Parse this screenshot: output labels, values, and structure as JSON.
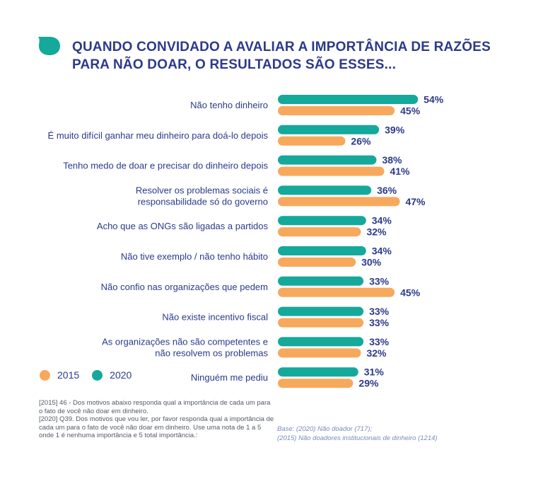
{
  "title": {
    "line1": "QUANDO CONVIDADO A AVALIAR A IMPORTÂNCIA DE RAZÕES",
    "line2": "PARA NÃO DOAR, O RESULTADOS SÃO ESSES..."
  },
  "colors": {
    "teal": "#14a99a",
    "orange": "#f6a95d",
    "navy": "#2b3a8a"
  },
  "legend": {
    "items": [
      {
        "label": "2015",
        "color": "#f6a95d"
      },
      {
        "label": "2020",
        "color": "#14a99a"
      }
    ]
  },
  "notes": {
    "left": [
      "[2015] 46 - Dos motivos abaixo responda qual a importância de cada um para o fato de você não doar em dinheiro.",
      "[2020] Q39. Dos motivos  que vou ler, por favor responda qual a importância de cada um para o fato de você não doar em dinheiro. Use uma nota de 1 a 5 onde 1 é nenhuma importância e 5 total importância.:"
    ],
    "right": [
      "Base: (2020) Não  doador (717);",
      "(2015) Não doadores institucionais de dinheiro (1214)"
    ]
  },
  "chart_data": {
    "type": "bar",
    "orientation": "horizontal",
    "categories": [
      [
        "Não tenho dinheiro"
      ],
      [
        "É muito difícil ganhar meu dinheiro para doá-lo depois"
      ],
      [
        "Tenho medo de doar e precisar do dinheiro depois"
      ],
      [
        "Resolver os problemas sociais é",
        "responsabilidade só do governo"
      ],
      [
        "Acho que as ONGs são ligadas a partidos"
      ],
      [
        "Não tive exemplo / não tenho hábito"
      ],
      [
        "Não confio nas organizações que pedem"
      ],
      [
        "Não existe incentivo fiscal"
      ],
      [
        "As organizações não são competentes e",
        "não resolvem os problemas"
      ],
      [
        "Ninguém me pediu"
      ]
    ],
    "series": [
      {
        "name": "2020",
        "color": "#14a99a",
        "values": [
          54,
          39,
          38,
          36,
          34,
          34,
          33,
          33,
          33,
          31
        ]
      },
      {
        "name": "2015",
        "color": "#f6a95d",
        "values": [
          45,
          26,
          41,
          47,
          32,
          30,
          45,
          33,
          32,
          29
        ]
      }
    ],
    "value_suffix": "%",
    "xlim": [
      0,
      100
    ],
    "grid": false,
    "legend_position": "bottom-left"
  }
}
